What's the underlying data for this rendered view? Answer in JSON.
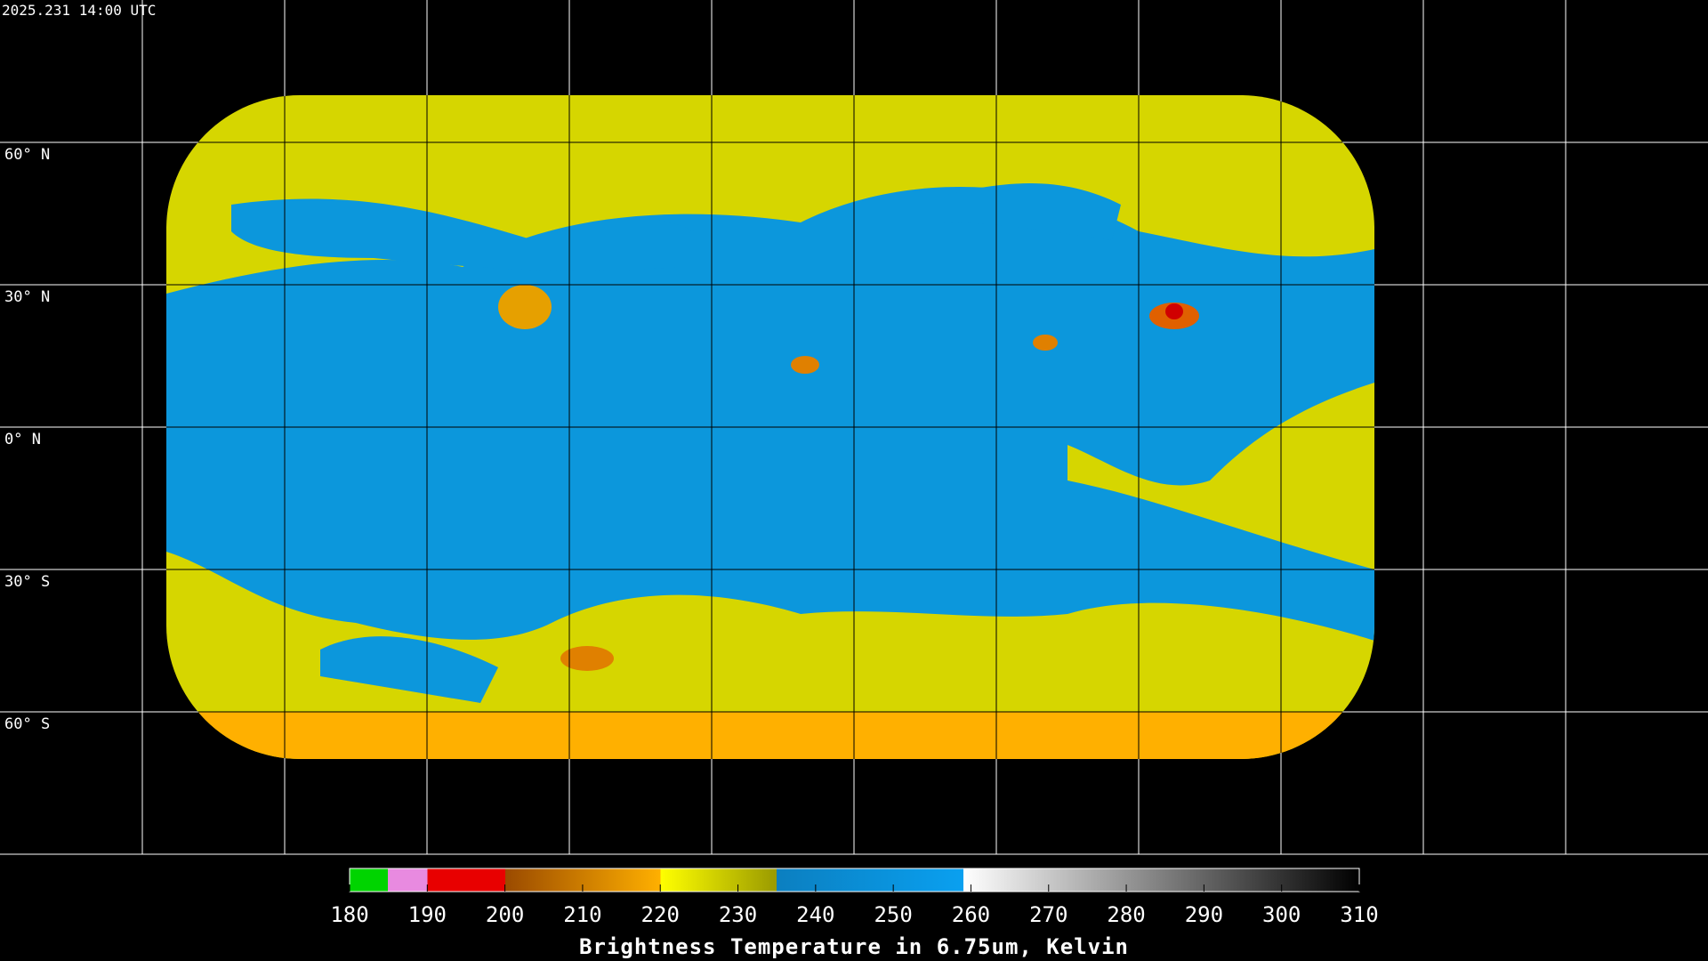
{
  "header": {
    "timestamp": "2025.231 14:00 UTC"
  },
  "map": {
    "latitude_labels": [
      "60° N",
      "30° N",
      "0° N",
      "30° S",
      "60° S"
    ]
  },
  "colorbar": {
    "ticks": [
      180,
      190,
      200,
      210,
      220,
      230,
      240,
      250,
      260,
      270,
      280,
      290,
      300,
      310
    ],
    "label": "Brightness Temperature in 6.75um, Kelvin"
  }
}
